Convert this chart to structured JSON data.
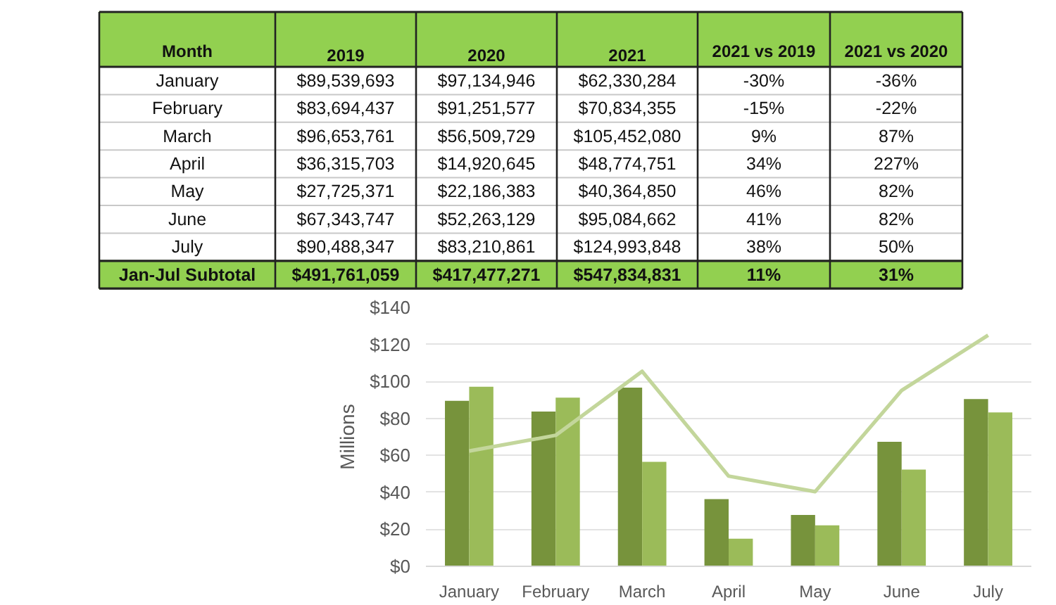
{
  "chart_data": {
    "type": "bar",
    "categories": [
      "January",
      "February",
      "March",
      "April",
      "May",
      "June",
      "July"
    ],
    "series": [
      {
        "color": "#77933c",
        "values": [
          89.539693,
          83.694437,
          96.653761,
          36.315703,
          27.725371,
          67.343747,
          90.488347
        ]
      },
      {
        "color": "#9bbb59",
        "values": [
          97.134946,
          91.251577,
          56.509729,
          14.920645,
          22.186383,
          52.263129,
          83.210861
        ]
      },
      {
        "type": "line",
        "color": "#c3d69b",
        "values": [
          62.330284,
          70.834355,
          105.45208,
          48.774751,
          40.36485,
          95.084662,
          124.993848
        ]
      }
    ],
    "ylabel": "Millions",
    "ylim": [
      0,
      140
    ],
    "yticks": [
      {
        "value": 0,
        "label": "$0"
      },
      {
        "value": 20,
        "label": "$20"
      },
      {
        "value": 40,
        "label": "$40"
      },
      {
        "value": 60,
        "label": "$60"
      },
      {
        "value": 80,
        "label": "$80"
      },
      {
        "value": 100,
        "label": "$100"
      },
      {
        "value": 120,
        "label": "$120"
      },
      {
        "value": 140,
        "label": "$140"
      }
    ],
    "grid": "y",
    "annotations": [
      "Month",
      "2019",
      "2020",
      "2021",
      "2021 vs 2019",
      "2021 vs 2020",
      "$89,539,693",
      "$97,134,946",
      "$62,330,284",
      "-30%",
      "-36%",
      "$83,694,437",
      "$91,251,577",
      "$70,834,355",
      "-15%",
      "-22%",
      "$96,653,761",
      "$56,509,729",
      "$105,452,080",
      "9%",
      "87%",
      "$36,315,703",
      "$14,920,645",
      "$48,774,751",
      "34%",
      "227%",
      "$27,725,371",
      "$22,186,383",
      "$40,364,850",
      "46%",
      "82%",
      "$67,343,747",
      "$52,263,129",
      "$95,084,662",
      "41%",
      "82%",
      "$90,488,347",
      "$83,210,861",
      "$124,993,848",
      "38%",
      "50%",
      "Jan-Jul Subtotal",
      "$491,761,059",
      "$417,477,271",
      "$547,834,831",
      "11%",
      "31%"
    ]
  }
}
